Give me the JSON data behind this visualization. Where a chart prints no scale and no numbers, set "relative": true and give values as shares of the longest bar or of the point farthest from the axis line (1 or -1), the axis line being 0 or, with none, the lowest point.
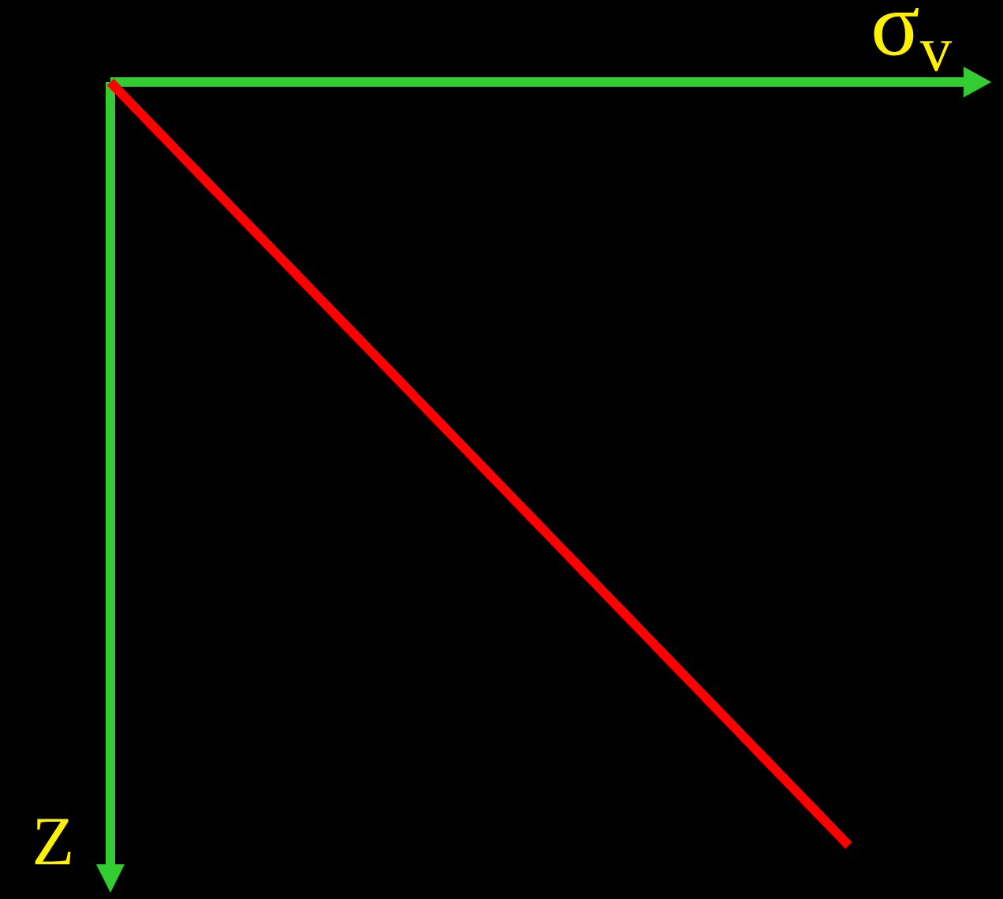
{
  "chart_data": {
    "type": "line",
    "relative": true,
    "xlabel": "σ$_{v}$",
    "ylabel": "Z",
    "categories": [
      null,
      null
    ],
    "values": [
      0,
      -1
    ],
    "color": "#ff0000",
    "marker": "none",
    "line_style": "solid"
  }
}
